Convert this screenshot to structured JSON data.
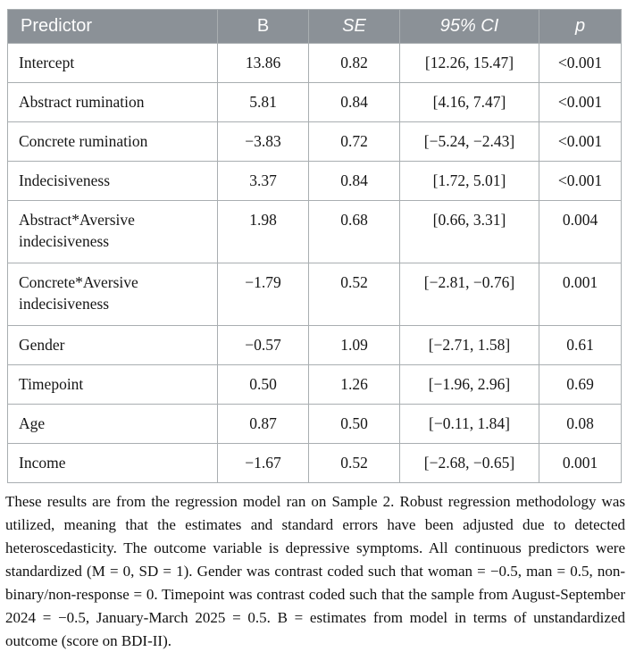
{
  "table": {
    "columns": [
      "Predictor",
      "B",
      "SE",
      "95% CI",
      "p"
    ],
    "rows": [
      {
        "predictor": "Intercept",
        "b": "13.86",
        "se": "0.82",
        "ci": "[12.26, 15.47]",
        "p": "<0.001"
      },
      {
        "predictor": "Abstract rumination",
        "b": "5.81",
        "se": "0.84",
        "ci": "[4.16, 7.47]",
        "p": "<0.001"
      },
      {
        "predictor": "Concrete rumination",
        "b": "−3.83",
        "se": "0.72",
        "ci": "[−5.24, −2.43]",
        "p": "<0.001"
      },
      {
        "predictor": "Indecisiveness",
        "b": "3.37",
        "se": "0.84",
        "ci": "[1.72, 5.01]",
        "p": "<0.001"
      },
      {
        "predictor": "Abstract*Aversive indecisiveness",
        "b": "1.98",
        "se": "0.68",
        "ci": "[0.66, 3.31]",
        "p": "0.004"
      },
      {
        "predictor": "Concrete*Aversive indecisiveness",
        "b": "−1.79",
        "se": "0.52",
        "ci": "[−2.81, −0.76]",
        "p": "0.001"
      },
      {
        "predictor": "Gender",
        "b": "−0.57",
        "se": "1.09",
        "ci": "[−2.71, 1.58]",
        "p": "0.61"
      },
      {
        "predictor": "Timepoint",
        "b": "0.50",
        "se": "1.26",
        "ci": "[−1.96, 2.96]",
        "p": "0.69"
      },
      {
        "predictor": "Age",
        "b": "0.87",
        "se": "0.50",
        "ci": "[−0.11, 1.84]",
        "p": "0.08"
      },
      {
        "predictor": "Income",
        "b": "−1.67",
        "se": "0.52",
        "ci": "[−2.68, −0.65]",
        "p": "0.001"
      }
    ]
  },
  "footnote": "These results are from the regression model ran on Sample 2. Robust regression methodology was utilized, meaning that the estimates and standard errors have been adjusted due to detected heteroscedasticity. The outcome variable is depressive symptoms. All continuous predictors were standardized (M = 0, SD = 1). Gender was contrast coded such that woman = −0.5, man = 0.5, non-binary/non-response = 0. Timepoint was contrast coded such that the sample from August-September 2024 = −0.5, January-March 2025 = 0.5. B = estimates from model in terms of unstandardized outcome (score on BDI-II).",
  "colors": {
    "header_bg": "#8b9197",
    "border": "#a9aeb1",
    "text": "#161616"
  }
}
